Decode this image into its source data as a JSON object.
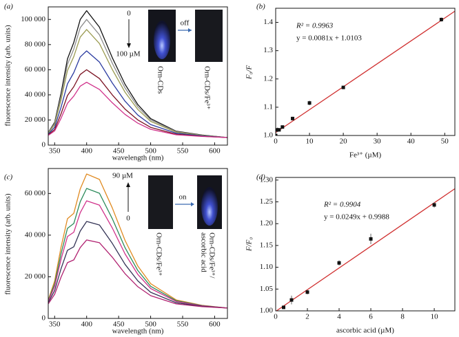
{
  "chart_data": [
    {
      "type": "line",
      "panel_label": "(a)",
      "x_label": "wavelength (nm)",
      "y_label": "fluorescence intensity (arb. units)",
      "xlim": [
        340,
        620
      ],
      "xticks": [
        350,
        400,
        450,
        500,
        550,
        600
      ],
      "ylim": [
        0,
        110000
      ],
      "yticks": [
        0,
        {
          "value": 20000,
          "label": "20 000"
        },
        {
          "value": 40000,
          "label": "40 000"
        },
        {
          "value": 60000,
          "label": "60 000"
        },
        {
          "value": 80000,
          "label": "80 000"
        },
        {
          "value": 100000,
          "label": "100 000"
        }
      ],
      "x": [
        340,
        350,
        360,
        370,
        380,
        390,
        400,
        420,
        440,
        460,
        480,
        500,
        540,
        580,
        620
      ],
      "series": [
        {
          "color": "#111111",
          "values": [
            10040,
            18120,
            41350,
            68620,
            81750,
            99930,
            107000,
            93870,
            69630,
            48420,
            32260,
            21150,
            11050,
            8020,
            6000
          ]
        },
        {
          "color": "#8c8c8c",
          "values": [
            9760,
            17280,
            38900,
            64280,
            76500,
            93420,
            100000,
            87780,
            65220,
            45480,
            30440,
            20100,
            10700,
            7880,
            6000
          ]
        },
        {
          "color": "#9a9a50",
          "values": [
            9440,
            16320,
            36100,
            59320,
            70500,
            85980,
            92000,
            80820,
            60180,
            42120,
            28360,
            18900,
            10300,
            7720,
            6000
          ]
        },
        {
          "color": "#2a3aa0",
          "values": [
            8760,
            14280,
            30150,
            48780,
            57750,
            70170,
            75000,
            66030,
            49470,
            34980,
            23940,
            16350,
            9450,
            7380,
            6000
          ]
        },
        {
          "color": "#7a1020",
          "values": [
            8160,
            12480,
            24900,
            39480,
            46500,
            56220,
            60000,
            52980,
            40020,
            28680,
            20040,
            14100,
            8700,
            7080,
            6000
          ]
        },
        {
          "color": "#d0308a",
          "values": [
            7760,
            11280,
            21400,
            33280,
            39000,
            46920,
            50000,
            44280,
            33720,
            24480,
            17440,
            12600,
            8200,
            6880,
            6000
          ]
        }
      ],
      "annotations": [
        "0",
        "100 µM",
        "off",
        "Orn-CDs",
        "Orn-CDs/Fe³⁺"
      ]
    },
    {
      "type": "scatter",
      "panel_label": "(b)",
      "x_label": "Fe³⁺ (µM)",
      "y_label": "F₀/F",
      "xlim": [
        0,
        53
      ],
      "xticks": [
        0,
        10,
        20,
        30,
        40,
        50
      ],
      "ylim": [
        1.0,
        1.45
      ],
      "yticks": [
        {
          "value": 1.0,
          "label": "1.0"
        },
        1.1,
        1.2,
        1.3,
        1.4
      ],
      "x": [
        0,
        0.5,
        1,
        2,
        5,
        10,
        20,
        49
      ],
      "values": [
        1.0,
        1.02,
        1.02,
        1.03,
        1.06,
        1.115,
        1.17,
        1.41
      ],
      "errors": [
        0.005,
        0.008,
        0.005,
        0.004,
        0.006,
        0.008,
        0.006,
        0.007
      ],
      "color": "#111111",
      "fit": {
        "slope": 0.0081,
        "intercept": 1.0103,
        "color": "#d03030"
      },
      "annotations": [
        "R² = 0.9963",
        "y = 0.0081x + 1.0103"
      ]
    },
    {
      "type": "line",
      "panel_label": "(c)",
      "x_label": "wavelength (nm)",
      "y_label": "fluorescence intensity (arb. units)",
      "xlim": [
        340,
        620
      ],
      "xticks": [
        350,
        400,
        450,
        500,
        550,
        600
      ],
      "ylim": [
        0,
        72000
      ],
      "yticks": [
        0,
        {
          "value": 20000,
          "label": "20 000"
        },
        {
          "value": 40000,
          "label": "40 000"
        },
        {
          "value": 60000,
          "label": "60 000"
        }
      ],
      "x": [
        340,
        350,
        360,
        370,
        380,
        390,
        400,
        420,
        440,
        460,
        480,
        500,
        540,
        580,
        620
      ],
      "series": [
        {
          "color": "#e08a20",
          "values": [
            8900,
            18000,
            34250,
            47900,
            50500,
            62200,
            69350,
            66750,
            53100,
            37500,
            25150,
            16700,
            8900,
            6300,
            5000
          ]
        },
        {
          "color": "#2a8a5a",
          "values": [
            8480,
            16600,
            31100,
            43280,
            45600,
            56040,
            62420,
            60100,
            47920,
            34000,
            22980,
            15440,
            8480,
            6160,
            5000
          ]
        },
        {
          "color": "#d0308a",
          "values": [
            8120,
            15400,
            28400,
            39320,
            41400,
            50760,
            56480,
            54400,
            43480,
            31000,
            21120,
            14360,
            8120,
            6040,
            5000
          ]
        },
        {
          "color": "#333355",
          "values": [
            7520,
            13400,
            23900,
            32720,
            34400,
            41960,
            46580,
            44900,
            36080,
            26000,
            18020,
            12560,
            7520,
            5840,
            5000
          ]
        },
        {
          "color": "#b02070",
          "values": [
            6980,
            11600,
            19850,
            26780,
            28100,
            34040,
            37670,
            36350,
            29420,
            21500,
            15230,
            10940,
            6980,
            5660,
            5000
          ]
        }
      ],
      "annotations": [
        "90 µM",
        "0",
        "on",
        "Orn-CDs/Fe³⁺",
        "Orn-CDs/Fe³⁺/",
        "ascorbic acid"
      ]
    },
    {
      "type": "scatter",
      "panel_label": "(d)",
      "x_label": "ascorbic acid (µM)",
      "y_label": "F/F₀",
      "xlim": [
        0,
        11.3
      ],
      "xticks": [
        0,
        2,
        4,
        6,
        8,
        10
      ],
      "ylim": [
        1.0,
        1.306
      ],
      "yticks": [
        {
          "value": 1.0,
          "label": "1.00"
        },
        1.05,
        {
          "value": 1.1,
          "label": "1.10"
        },
        1.15,
        {
          "value": 1.2,
          "label": "1.20"
        },
        1.25,
        {
          "value": 1.3,
          "label": "1.30"
        }
      ],
      "x": [
        0.5,
        1,
        2,
        4,
        6,
        10
      ],
      "values": [
        1.008,
        1.025,
        1.043,
        1.11,
        1.165,
        1.243
      ],
      "errors": [
        0.004,
        0.01,
        0.005,
        0.006,
        0.012,
        0.006
      ],
      "color": "#111111",
      "fit": {
        "slope": 0.0249,
        "intercept": 0.9988,
        "color": "#d03030"
      },
      "annotations": [
        "R² = 0.9904",
        "y = 0.0249x + 0.9988"
      ]
    }
  ]
}
